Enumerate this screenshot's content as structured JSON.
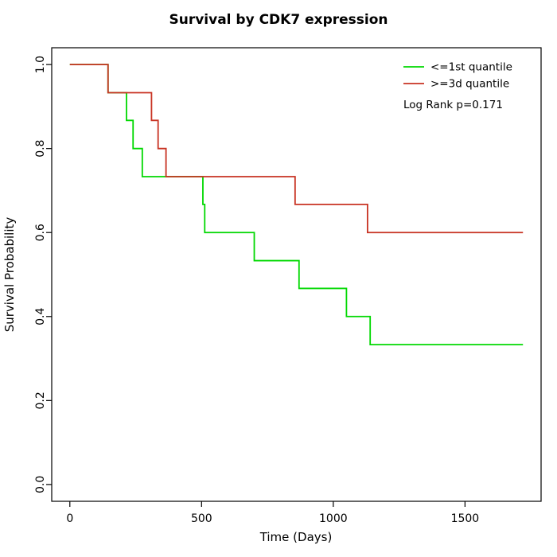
{
  "chart_data": {
    "type": "line",
    "subtype": "kaplan-meier-step",
    "title": "Survival by CDK7 expression",
    "xlabel": "Time (Days)",
    "ylabel": "Survival Probability",
    "xlim": [
      0,
      1720
    ],
    "ylim": [
      0.0,
      1.0
    ],
    "grid": false,
    "x_axis": {
      "ticks": [
        "0",
        "500",
        "1000",
        "1500"
      ]
    },
    "y_axis": {
      "ticks": [
        "0.0",
        "0.2",
        "0.4",
        "0.6",
        "0.8",
        "1.0"
      ]
    },
    "legend": {
      "position": "top-right-inside"
    },
    "annotation": "Log Rank p=0.171",
    "series": [
      {
        "name": "<=1st quantile",
        "color": "#00D800",
        "steps": [
          [
            0,
            1.0
          ],
          [
            145,
            0.933
          ],
          [
            215,
            0.867
          ],
          [
            240,
            0.8
          ],
          [
            275,
            0.733
          ],
          [
            505,
            0.667
          ],
          [
            512,
            0.6
          ],
          [
            700,
            0.533
          ],
          [
            870,
            0.467
          ],
          [
            1050,
            0.4
          ],
          [
            1140,
            0.333
          ],
          [
            1720,
            0.333
          ]
        ]
      },
      {
        "name": ">=3d quantile",
        "color": "#C83222",
        "steps": [
          [
            0,
            1.0
          ],
          [
            145,
            0.933
          ],
          [
            310,
            0.867
          ],
          [
            335,
            0.8
          ],
          [
            365,
            0.733
          ],
          [
            855,
            0.667
          ],
          [
            1130,
            0.6
          ],
          [
            1720,
            0.6
          ]
        ]
      }
    ]
  }
}
